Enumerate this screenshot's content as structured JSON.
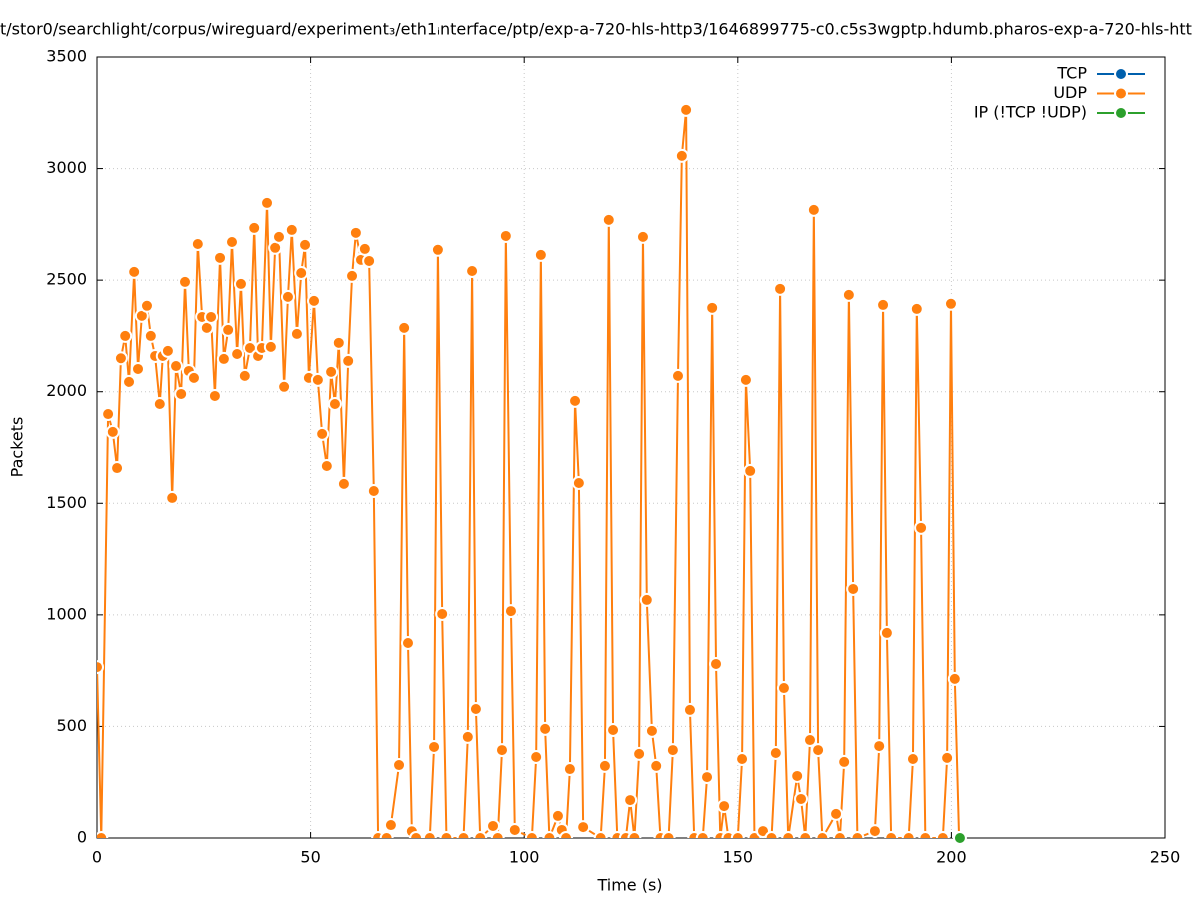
{
  "chart_data": {
    "type": "line",
    "title": "t/stor0/searchlight/corpus/wireguard/experiment₃/eth1ᵢnterface/ptp/exp-a-720-hls-http3/1646899775-c0.c5s3wgptp.hdumb.pharos-exp-a-720-hls-htt",
    "x_label": "Time (s)",
    "y_label": "Packets",
    "xlim": [
      0,
      250
    ],
    "xticks": [
      0,
      50,
      100,
      150,
      200,
      250
    ],
    "ylim": [
      0,
      3500
    ],
    "yticks": [
      0,
      500,
      1000,
      1500,
      2000,
      2500,
      3000,
      3500
    ],
    "grid": true,
    "legend": "top-right",
    "series": [
      {
        "name": "TCP",
        "color": "#0060ad",
        "x": [],
        "values": []
      },
      {
        "name": "UDP",
        "color": "#ff7f0e",
        "x": [
          0,
          1,
          2.6,
          3.7,
          4.7,
          5.6,
          6.6,
          7.5,
          8.7,
          9.6,
          10.5,
          11.7,
          12.6,
          13.6,
          14.7,
          15.4,
          16.6,
          17.6,
          18.5,
          19.7,
          20.6,
          21.5,
          22.7,
          23.6,
          24.6,
          25.7,
          26.7,
          27.6,
          28.8,
          29.7,
          30.7,
          31.6,
          32.8,
          33.7,
          34.6,
          35.8,
          36.8,
          37.7,
          38.6,
          39.8,
          40.7,
          41.7,
          42.6,
          43.8,
          44.7,
          45.6,
          46.8,
          47.8,
          48.7,
          49.6,
          50.8,
          51.7,
          52.7,
          53.8,
          54.8,
          55.7,
          56.6,
          57.8,
          58.8,
          59.7,
          60.6,
          61.8,
          62.7,
          63.7,
          64.8,
          65.8,
          67.8,
          68.8,
          70.7,
          71.9,
          72.8,
          73.7,
          74.7,
          77.9,
          78.9,
          79.8,
          80.8,
          81.8,
          85.8,
          86.8,
          87.8,
          88.7,
          89.7,
          92.7,
          93.8,
          94.8,
          95.7,
          96.9,
          97.8,
          101.8,
          102.8,
          103.9,
          104.9,
          105.9,
          107.9,
          108.8,
          109.8,
          110.7,
          111.9,
          112.8,
          113.8,
          117.9,
          118.9,
          119.8,
          120.8,
          121.8,
          123.8,
          124.8,
          125.8,
          126.9,
          127.8,
          128.7,
          129.9,
          130.9,
          131.9,
          133.8,
          134.8,
          136.0,
          136.9,
          137.9,
          138.8,
          139.8,
          141.8,
          142.8,
          144.0,
          144.9,
          145.9,
          146.8,
          147.8,
          150.0,
          151.0,
          151.9,
          152.9,
          153.9,
          155.9,
          157.9,
          158.9,
          159.9,
          160.8,
          161.8,
          163.9,
          164.8,
          165.8,
          166.9,
          167.8,
          168.8,
          169.8,
          173.0,
          173.9,
          174.9,
          176.0,
          177.0,
          178.0,
          182.1,
          183.1,
          184.0,
          184.9,
          185.9,
          190.0,
          191.0,
          191.9,
          192.9,
          193.9,
          198.0,
          199.0,
          199.9,
          200.8,
          201.8
        ],
        "values": [
          766,
          0,
          1900,
          1820,
          1658,
          2150,
          2250,
          2044,
          2537,
          2102,
          2340,
          2385,
          2250,
          2160,
          1945,
          2160,
          2183,
          1524,
          2115,
          1990,
          2492,
          2093,
          2062,
          2662,
          2335,
          2286,
          2335,
          1981,
          2600,
          2147,
          2277,
          2671,
          2169,
          2483,
          2071,
          2196,
          2734,
          2160,
          2196,
          2846,
          2201,
          2645,
          2694,
          2022,
          2425,
          2725,
          2259,
          2532,
          2658,
          2062,
          2407,
          2053,
          1811,
          1667,
          2089,
          1945,
          2219,
          1587,
          2138,
          2519,
          2712,
          2591,
          2640,
          2586,
          1555,
          0,
          0,
          58,
          327,
          2286,
          874,
          30,
          0,
          0,
          408,
          2636,
          1004,
          0,
          0,
          453,
          2541,
          578,
          0,
          54,
          0,
          394,
          2698,
          1017,
          36,
          0,
          363,
          2613,
          489,
          0,
          99,
          36,
          0,
          309,
          1959,
          1591,
          49,
          0,
          323,
          2770,
          484,
          0,
          0,
          170,
          0,
          377,
          2694,
          1067,
          480,
          323,
          0,
          0,
          394,
          2071,
          3057,
          3263,
          574,
          0,
          0,
          273,
          2376,
          780,
          0,
          143,
          0,
          0,
          354,
          2053,
          1645,
          0,
          31,
          0,
          381,
          2461,
          672,
          0,
          278,
          175,
          0,
          439,
          2815,
          394,
          0,
          108,
          0,
          341,
          2434,
          1116,
          0,
          31,
          412,
          2389,
          919,
          0,
          0,
          354,
          2371,
          1390,
          0,
          0,
          359,
          2394,
          713,
          0
        ]
      },
      {
        "name": "IP (!TCP  !UDP)",
        "color": "#2ca02c",
        "x": [
          202
        ],
        "values": [
          0
        ]
      }
    ]
  }
}
